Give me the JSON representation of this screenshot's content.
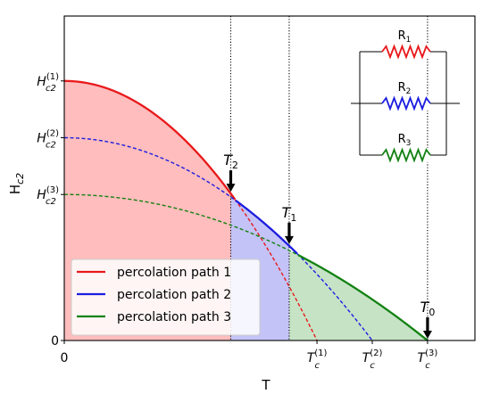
{
  "chart_data": {
    "type": "line",
    "xlabel": "T",
    "ylabel": "H",
    "ylabel_sub": "c2",
    "xlim": [
      0,
      1.3
    ],
    "ylim": [
      0,
      1.0
    ],
    "x_ticks": [
      {
        "x": 0,
        "main": "0",
        "sup": "",
        "sub": "",
        "italic": false
      },
      {
        "x": 0.8,
        "main": "T",
        "sup": "(1)",
        "sub": "c",
        "italic": true
      },
      {
        "x": 0.975,
        "main": "T",
        "sup": "(2)",
        "sub": "c",
        "italic": true
      },
      {
        "x": 1.15,
        "main": "T",
        "sup": "(3)",
        "sub": "c",
        "italic": true
      }
    ],
    "y_ticks": [
      {
        "y": 0,
        "main": "0",
        "sup": "",
        "sub": ""
      },
      {
        "y": 0.8,
        "main": "H",
        "sup": "(1)",
        "sub": "c2"
      },
      {
        "y": 0.625,
        "main": "H",
        "sup": "(2)",
        "sub": "c2"
      },
      {
        "y": 0.45,
        "main": "H",
        "sup": "(3)",
        "sub": "c2"
      }
    ],
    "series": [
      {
        "name": "percolation path 1",
        "color": "#e8191b",
        "Hc0": 0.8,
        "Tc": 0.8
      },
      {
        "name": "percolation path 2",
        "color": "#1c1ce0",
        "Hc0": 0.625,
        "Tc": 0.975
      },
      {
        "name": "percolation path 3",
        "color": "#128212",
        "Hc0": 0.45,
        "Tc": 1.15
      }
    ],
    "fills": [
      {
        "from": 0,
        "to": 0.527,
        "series": 0,
        "color": "#ffbdbd"
      },
      {
        "from": 0.527,
        "to": 0.712,
        "series": 1,
        "color": "#c3c3f7"
      },
      {
        "from": 0.712,
        "to": 1.15,
        "series": 2,
        "color": "#c6e3c6"
      }
    ],
    "markers": [
      {
        "x": 0.527,
        "main": "T",
        "sub": "2"
      },
      {
        "x": 0.712,
        "main": "T",
        "sub": "1"
      },
      {
        "x": 1.15,
        "main": "T",
        "sub": "0"
      }
    ],
    "legend_position": "lower-left",
    "inset": {
      "resistors": [
        {
          "label": "R",
          "sub": "1",
          "color": "#e8191b"
        },
        {
          "label": "R",
          "sub": "2",
          "color": "#1c1ce0"
        },
        {
          "label": "R",
          "sub": "3",
          "color": "#128212"
        }
      ]
    }
  }
}
